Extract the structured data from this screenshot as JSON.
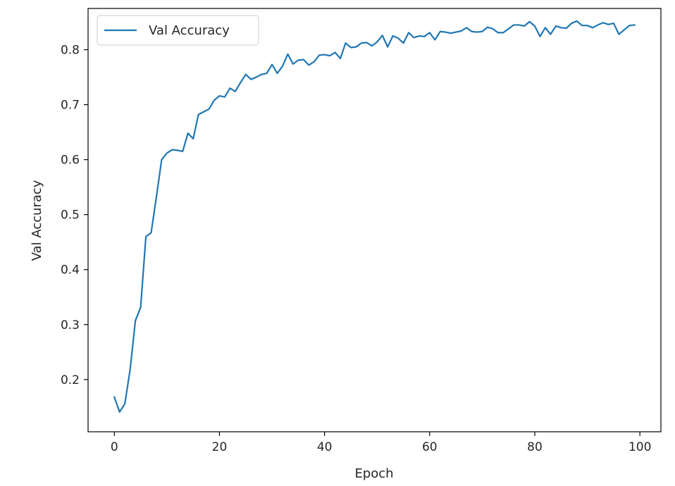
{
  "chart_data": {
    "type": "line",
    "title": "",
    "xlabel": "Epoch",
    "ylabel": "Val Accuracy",
    "xlim": [
      -5,
      104
    ],
    "ylim": [
      0.105,
      0.875
    ],
    "xticks": [
      0,
      20,
      40,
      60,
      80,
      100
    ],
    "yticks": [
      0.2,
      0.3,
      0.4,
      0.5,
      0.6,
      0.7,
      0.8
    ],
    "xtick_labels": [
      "0",
      "20",
      "40",
      "60",
      "80",
      "100"
    ],
    "ytick_labels": [
      "0.2",
      "0.3",
      "0.4",
      "0.5",
      "0.6",
      "0.7",
      "0.8"
    ],
    "grid": false,
    "legend": {
      "position": "upper-left",
      "entries": [
        "Val Accuracy"
      ]
    },
    "series": [
      {
        "name": "Val Accuracy",
        "color": "#1f77b4",
        "x": [
          0,
          1,
          2,
          3,
          4,
          5,
          6,
          7,
          8,
          9,
          10,
          11,
          12,
          13,
          14,
          15,
          16,
          17,
          18,
          19,
          20,
          21,
          22,
          23,
          24,
          25,
          26,
          27,
          28,
          29,
          30,
          31,
          32,
          33,
          34,
          35,
          36,
          37,
          38,
          39,
          40,
          41,
          42,
          43,
          44,
          45,
          46,
          47,
          48,
          49,
          50,
          51,
          52,
          53,
          54,
          55,
          56,
          57,
          58,
          59,
          60,
          61,
          62,
          63,
          64,
          65,
          66,
          67,
          68,
          69,
          70,
          71,
          72,
          73,
          74,
          75,
          76,
          77,
          78,
          79,
          80,
          81,
          82,
          83,
          84,
          85,
          86,
          87,
          88,
          89,
          90,
          91,
          92,
          93,
          94,
          95,
          96,
          97,
          98,
          99
        ],
        "values": [
          0.168,
          0.141,
          0.156,
          0.218,
          0.307,
          0.331,
          0.46,
          0.467,
          0.532,
          0.6,
          0.612,
          0.618,
          0.617,
          0.615,
          0.648,
          0.638,
          0.682,
          0.687,
          0.692,
          0.708,
          0.716,
          0.714,
          0.73,
          0.724,
          0.74,
          0.755,
          0.746,
          0.75,
          0.755,
          0.757,
          0.773,
          0.757,
          0.77,
          0.792,
          0.774,
          0.781,
          0.782,
          0.772,
          0.778,
          0.79,
          0.791,
          0.789,
          0.795,
          0.784,
          0.812,
          0.804,
          0.805,
          0.812,
          0.813,
          0.807,
          0.814,
          0.826,
          0.805,
          0.825,
          0.821,
          0.812,
          0.831,
          0.822,
          0.825,
          0.824,
          0.831,
          0.818,
          0.833,
          0.832,
          0.83,
          0.832,
          0.834,
          0.84,
          0.833,
          0.832,
          0.833,
          0.841,
          0.838,
          0.831,
          0.831,
          0.838,
          0.845,
          0.845,
          0.843,
          0.851,
          0.843,
          0.824,
          0.84,
          0.828,
          0.843,
          0.84,
          0.839,
          0.848,
          0.852,
          0.844,
          0.844,
          0.84,
          0.845,
          0.849,
          0.846,
          0.848,
          0.828,
          0.836,
          0.844,
          0.845
        ]
      }
    ]
  }
}
